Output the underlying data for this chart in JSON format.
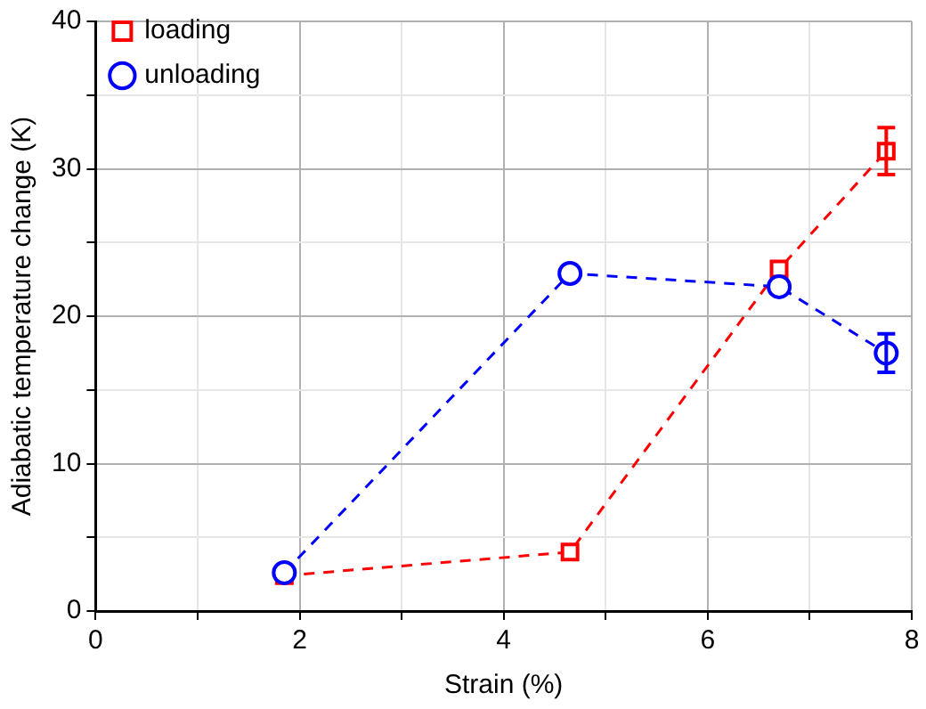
{
  "chart_data": {
    "type": "line",
    "xlabel": "Strain (%)",
    "ylabel": "Adiabatic temperature change (K)",
    "xlim": [
      0,
      8
    ],
    "ylim": [
      0,
      40
    ],
    "xticks": [
      0,
      {
        "value": 1,
        "label": null
      },
      2,
      {
        "value": 3,
        "label": null
      },
      4,
      {
        "value": 5,
        "label": null
      },
      6,
      {
        "value": 7,
        "label": null
      },
      8
    ],
    "yticks": [
      0,
      {
        "value": 5,
        "label": null
      },
      10,
      {
        "value": 15,
        "label": null
      },
      20,
      {
        "value": 25,
        "label": null
      },
      30,
      {
        "value": 35,
        "label": null
      },
      40
    ],
    "grid": true,
    "legend": "top left",
    "line_style": "dashed",
    "series": [
      {
        "name": "loading",
        "color": "#ff0000",
        "marker": "square",
        "x": [
          1.85,
          4.65,
          6.7,
          7.75
        ],
        "values": [
          2.4,
          4.0,
          23.2,
          31.2
        ],
        "errors": [
          null,
          null,
          null,
          1.6
        ]
      },
      {
        "name": "unloading",
        "color": "#0000ff",
        "marker": "circle",
        "x": [
          1.85,
          4.65,
          6.7,
          7.75
        ],
        "values": [
          2.6,
          22.9,
          22.0,
          17.5
        ],
        "errors": [
          null,
          null,
          null,
          1.3
        ]
      }
    ]
  }
}
